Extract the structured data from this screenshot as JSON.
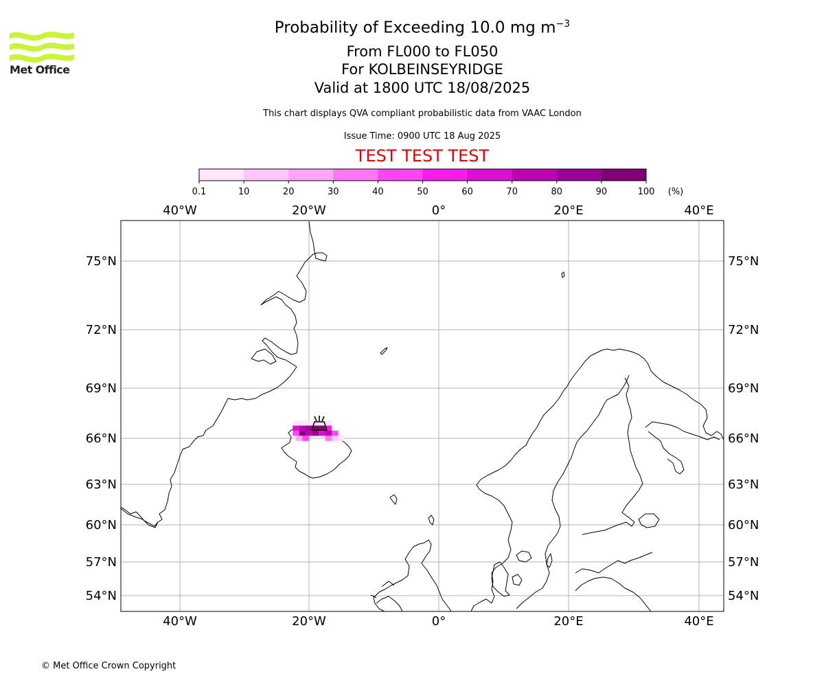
{
  "header": {
    "logo_text": "Met Office",
    "title_main": "Probability of Exceeding 10.0 mg m",
    "title_sup": "−3",
    "subtitle_levels": "From FL000 to FL050",
    "subtitle_location": "For KOLBEINSEYRIDGE",
    "subtitle_valid": "Valid at 1800 UTC 18/08/2025",
    "description": "This chart displays QVA compliant probabilistic data from VAAC London",
    "issue_time": "Issue Time: 0900 UTC 18 Aug 2025",
    "test_banner": "TEST TEST TEST"
  },
  "colorbar": {
    "ticks": [
      "0.1",
      "10",
      "20",
      "30",
      "40",
      "50",
      "60",
      "70",
      "80",
      "90",
      "100"
    ],
    "unit": "(%)",
    "colors": [
      "#ffe6fd",
      "#ffc6fb",
      "#ffa6f8",
      "#ff77f5",
      "#ff44f2",
      "#f71cec",
      "#db10d2",
      "#bd04b3",
      "#9b0196",
      "#800076"
    ]
  },
  "map": {
    "lon_labels": [
      "40°W",
      "20°W",
      "0°",
      "20°E",
      "40°E"
    ],
    "lat_labels": [
      "75°N",
      "72°N",
      "69°N",
      "66°N",
      "63°N",
      "60°N",
      "57°N",
      "54°N"
    ],
    "volcano": {
      "name": "volcano-marker-icon"
    },
    "plume_cells": [
      {
        "lon": -22.0,
        "lat": 66.9,
        "p": 5
      },
      {
        "lon": -21.0,
        "lat": 66.9,
        "p": 5
      },
      {
        "lon": -20.0,
        "lat": 66.9,
        "p": 5
      },
      {
        "lon": -19.0,
        "lat": 66.9,
        "p": 5
      },
      {
        "lon": -18.0,
        "lat": 66.9,
        "p": 5
      },
      {
        "lon": -17.0,
        "lat": 66.9,
        "p": 5
      },
      {
        "lon": -22.0,
        "lat": 66.6,
        "p": 65
      },
      {
        "lon": -21.0,
        "lat": 66.6,
        "p": 75
      },
      {
        "lon": -20.0,
        "lat": 66.6,
        "p": 85
      },
      {
        "lon": -19.0,
        "lat": 66.6,
        "p": 95
      },
      {
        "lon": -18.0,
        "lat": 66.6,
        "p": 95
      },
      {
        "lon": -17.0,
        "lat": 66.6,
        "p": 55
      },
      {
        "lon": -22.0,
        "lat": 66.3,
        "p": 45
      },
      {
        "lon": -21.0,
        "lat": 66.3,
        "p": 95
      },
      {
        "lon": -20.0,
        "lat": 66.3,
        "p": 75
      },
      {
        "lon": -19.0,
        "lat": 66.3,
        "p": 85
      },
      {
        "lon": -18.0,
        "lat": 66.3,
        "p": 65
      },
      {
        "lon": -17.0,
        "lat": 66.3,
        "p": 75
      },
      {
        "lon": -16.0,
        "lat": 66.3,
        "p": 45
      },
      {
        "lon": -21.5,
        "lat": 66.0,
        "p": 25
      },
      {
        "lon": -20.5,
        "lat": 66.0,
        "p": 45
      },
      {
        "lon": -17.0,
        "lat": 66.0,
        "p": 35
      },
      {
        "lon": -16.0,
        "lat": 66.0,
        "p": 15
      },
      {
        "lon": -15.0,
        "lat": 66.0,
        "p": 5
      }
    ]
  },
  "footer": {
    "copyright": "© Met Office Crown Copyright"
  }
}
